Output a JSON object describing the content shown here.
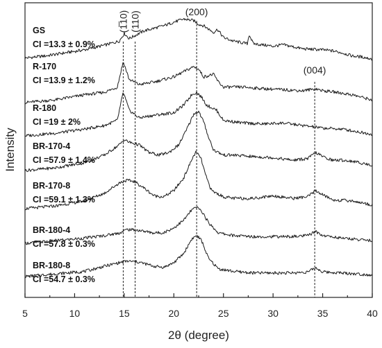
{
  "chart_data": {
    "type": "line",
    "xlabel": "2θ (degree)",
    "ylabel": "Intensity",
    "xlim": [
      5,
      40
    ],
    "x_ticks": [
      "5",
      "10",
      "15",
      "20",
      "25",
      "30",
      "35",
      "40"
    ],
    "grid": false,
    "peak_markers": [
      {
        "label": "(1̅10)",
        "x": 14.9
      },
      {
        "label": "(110)",
        "x": 16.1
      },
      {
        "label": "(200)",
        "x": 22.3
      },
      {
        "label": "(004)",
        "x": 34.2
      }
    ],
    "series": [
      {
        "name": "GS",
        "ci": "CI =13.3 ± 0.9%",
        "points": [
          [
            5,
            0.22
          ],
          [
            7,
            0.26
          ],
          [
            9,
            0.32
          ],
          [
            11,
            0.38
          ],
          [
            13,
            0.47
          ],
          [
            14.5,
            0.55
          ],
          [
            15,
            0.7
          ],
          [
            15.5,
            0.6
          ],
          [
            17,
            0.75
          ],
          [
            19,
            0.85
          ],
          [
            20,
            0.92
          ],
          [
            21,
            0.98
          ],
          [
            22,
            0.95
          ],
          [
            22.5,
            0.88
          ],
          [
            23,
            0.85
          ],
          [
            24,
            0.72
          ],
          [
            24.4,
            0.78
          ],
          [
            25,
            0.62
          ],
          [
            26,
            0.55
          ],
          [
            27.4,
            0.5
          ],
          [
            27.6,
            0.68
          ],
          [
            28,
            0.5
          ],
          [
            30,
            0.45
          ],
          [
            31,
            0.48
          ],
          [
            33,
            0.4
          ],
          [
            35,
            0.38
          ],
          [
            36,
            0.36
          ],
          [
            37,
            0.32
          ],
          [
            38,
            0.26
          ],
          [
            39,
            0.24
          ],
          [
            40,
            0.2
          ]
        ]
      },
      {
        "name": "R-170",
        "ci": "CI =13.9 ± 1.2%",
        "points": [
          [
            5,
            0.15
          ],
          [
            8,
            0.2
          ],
          [
            11,
            0.3
          ],
          [
            13,
            0.35
          ],
          [
            14.3,
            0.45
          ],
          [
            14.9,
            0.95
          ],
          [
            15.5,
            0.6
          ],
          [
            16.5,
            0.5
          ],
          [
            18,
            0.55
          ],
          [
            20,
            0.65
          ],
          [
            21.5,
            0.8
          ],
          [
            22,
            0.85
          ],
          [
            22.5,
            0.8
          ],
          [
            23,
            0.65
          ],
          [
            24,
            0.7
          ],
          [
            24.5,
            0.55
          ],
          [
            25,
            0.45
          ],
          [
            27,
            0.45
          ],
          [
            29,
            0.42
          ],
          [
            31,
            0.4
          ],
          [
            33,
            0.38
          ],
          [
            34.3,
            0.42
          ],
          [
            35,
            0.38
          ],
          [
            36,
            0.36
          ],
          [
            37,
            0.33
          ],
          [
            38,
            0.3
          ],
          [
            40,
            0.2
          ]
        ]
      },
      {
        "name": "R-180",
        "ci": "CI =19 ± 2%",
        "points": [
          [
            5,
            0.15
          ],
          [
            8,
            0.2
          ],
          [
            11,
            0.28
          ],
          [
            13,
            0.35
          ],
          [
            14.3,
            0.45
          ],
          [
            14.9,
            1.0
          ],
          [
            15.5,
            0.65
          ],
          [
            16.5,
            0.5
          ],
          [
            18,
            0.55
          ],
          [
            20,
            0.6
          ],
          [
            21,
            0.75
          ],
          [
            21.8,
            0.95
          ],
          [
            22.3,
            1.0
          ],
          [
            22.8,
            0.9
          ],
          [
            23.3,
            0.75
          ],
          [
            24.3,
            0.65
          ],
          [
            25,
            0.45
          ],
          [
            27,
            0.4
          ],
          [
            29,
            0.38
          ],
          [
            31,
            0.4
          ],
          [
            33,
            0.35
          ],
          [
            35,
            0.3
          ],
          [
            37,
            0.28
          ],
          [
            40,
            0.18
          ]
        ]
      },
      {
        "name": "BR-170-4",
        "ci": "CI =57.9 ± 1.4%",
        "points": [
          [
            5,
            0.15
          ],
          [
            8,
            0.2
          ],
          [
            11,
            0.3
          ],
          [
            13,
            0.45
          ],
          [
            14.5,
            0.65
          ],
          [
            15,
            0.75
          ],
          [
            15.5,
            0.7
          ],
          [
            16.5,
            0.65
          ],
          [
            17.5,
            0.5
          ],
          [
            18.5,
            0.45
          ],
          [
            19.5,
            0.5
          ],
          [
            20.5,
            0.65
          ],
          [
            21.3,
            0.95
          ],
          [
            22,
            1.25
          ],
          [
            22.5,
            1.3
          ],
          [
            23,
            1.1
          ],
          [
            23.5,
            0.8
          ],
          [
            24,
            0.55
          ],
          [
            25,
            0.45
          ],
          [
            26,
            0.45
          ],
          [
            28,
            0.42
          ],
          [
            30,
            0.4
          ],
          [
            32,
            0.35
          ],
          [
            33.5,
            0.38
          ],
          [
            34.3,
            0.5
          ],
          [
            35,
            0.42
          ],
          [
            36,
            0.35
          ],
          [
            37,
            0.35
          ],
          [
            38,
            0.33
          ],
          [
            40,
            0.25
          ]
        ]
      },
      {
        "name": "BR-170-8",
        "ci": "CI =59.1 ± 1.3%",
        "points": [
          [
            5,
            0.15
          ],
          [
            8,
            0.2
          ],
          [
            11,
            0.3
          ],
          [
            13,
            0.45
          ],
          [
            14.5,
            0.65
          ],
          [
            15.2,
            0.7
          ],
          [
            16,
            0.68
          ],
          [
            17,
            0.55
          ],
          [
            18,
            0.4
          ],
          [
            19,
            0.38
          ],
          [
            20,
            0.5
          ],
          [
            21,
            0.75
          ],
          [
            21.8,
            1.1
          ],
          [
            22.2,
            1.25
          ],
          [
            22.7,
            1.15
          ],
          [
            23.2,
            0.8
          ],
          [
            23.8,
            0.5
          ],
          [
            25,
            0.38
          ],
          [
            26,
            0.35
          ],
          [
            28,
            0.35
          ],
          [
            30,
            0.4
          ],
          [
            32,
            0.35
          ],
          [
            33.5,
            0.38
          ],
          [
            34.3,
            0.5
          ],
          [
            35,
            0.42
          ],
          [
            36,
            0.32
          ],
          [
            38,
            0.3
          ],
          [
            40,
            0.22
          ]
        ]
      },
      {
        "name": "BR-180-4",
        "ci": "CI =57.8 ± 0.3%",
        "points": [
          [
            5,
            0.15
          ],
          [
            8,
            0.2
          ],
          [
            11,
            0.25
          ],
          [
            13,
            0.3
          ],
          [
            14.5,
            0.35
          ],
          [
            15.3,
            0.42
          ],
          [
            16.5,
            0.4
          ],
          [
            18,
            0.35
          ],
          [
            19,
            0.36
          ],
          [
            20,
            0.45
          ],
          [
            21,
            0.6
          ],
          [
            21.8,
            0.8
          ],
          [
            22.3,
            0.85
          ],
          [
            22.8,
            0.78
          ],
          [
            23.5,
            0.55
          ],
          [
            24.5,
            0.35
          ],
          [
            26,
            0.3
          ],
          [
            28,
            0.28
          ],
          [
            30,
            0.28
          ],
          [
            32,
            0.28
          ],
          [
            33.5,
            0.3
          ],
          [
            34.3,
            0.38
          ],
          [
            35,
            0.3
          ],
          [
            37,
            0.25
          ],
          [
            40,
            0.2
          ]
        ]
      },
      {
        "name": "BR-180-8",
        "ci": "CI =54.7 ± 0.3%",
        "points": [
          [
            5,
            0.15
          ],
          [
            8,
            0.2
          ],
          [
            11,
            0.25
          ],
          [
            13,
            0.35
          ],
          [
            14.5,
            0.42
          ],
          [
            15.3,
            0.45
          ],
          [
            16.5,
            0.43
          ],
          [
            18,
            0.35
          ],
          [
            19,
            0.33
          ],
          [
            20,
            0.42
          ],
          [
            21,
            0.6
          ],
          [
            21.8,
            0.88
          ],
          [
            22.3,
            0.95
          ],
          [
            22.8,
            0.85
          ],
          [
            23.5,
            0.5
          ],
          [
            24.5,
            0.3
          ],
          [
            26,
            0.25
          ],
          [
            28,
            0.22
          ],
          [
            30,
            0.22
          ],
          [
            32,
            0.22
          ],
          [
            33.5,
            0.24
          ],
          [
            34.3,
            0.32
          ],
          [
            35,
            0.24
          ],
          [
            37,
            0.22
          ],
          [
            40,
            0.18
          ]
        ]
      }
    ]
  }
}
